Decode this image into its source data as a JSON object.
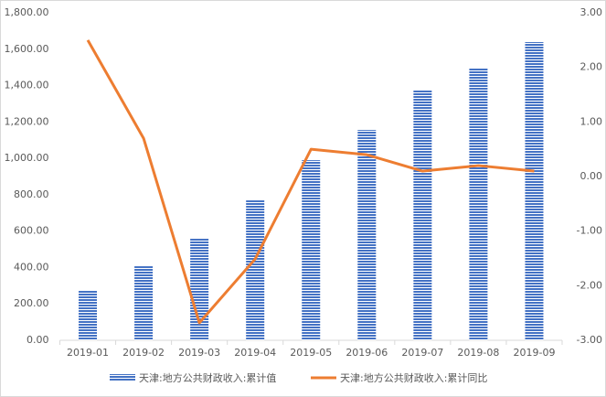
{
  "chart_data": {
    "type": "bar-line",
    "categories": [
      "2019-01",
      "2019-02",
      "2019-03",
      "2019-04",
      "2019-05",
      "2019-06",
      "2019-07",
      "2019-08",
      "2019-09"
    ],
    "series": [
      {
        "name": "天津:地方公共财政收入:累计值",
        "type": "bar",
        "color": "#4472c4",
        "values": [
          272,
          407,
          558,
          769,
          990,
          1156,
          1373,
          1498,
          1639
        ]
      },
      {
        "name": "天津:地方公共财政收入:累计同比",
        "type": "line",
        "axis": "y2",
        "color": "#ed7d31",
        "values": [
          2.5,
          0.7,
          -2.68,
          -1.51,
          0.5,
          0.4,
          0.1,
          0.2,
          0.1
        ]
      }
    ],
    "ylim": [
      0,
      1800
    ],
    "yticks": [
      {
        "value": 0,
        "label": "0.00"
      },
      {
        "value": 200,
        "label": "200.00"
      },
      {
        "value": 400,
        "label": "400.00"
      },
      {
        "value": 600,
        "label": "600.00"
      },
      {
        "value": 800,
        "label": "800.00"
      },
      {
        "value": 1000,
        "label": "1,000.00"
      },
      {
        "value": 1200,
        "label": "1,200.00"
      },
      {
        "value": 1400,
        "label": "1,400.00"
      },
      {
        "value": 1600,
        "label": "1,600.00"
      },
      {
        "value": 1800,
        "label": "1,800.00"
      }
    ],
    "y2lim": [
      -3,
      3
    ],
    "y2ticks": [
      {
        "value": -3,
        "label": "-3.00"
      },
      {
        "value": -2,
        "label": "-2.00"
      },
      {
        "value": -1,
        "label": "-1.00"
      },
      {
        "value": 0,
        "label": "0.00"
      },
      {
        "value": 1,
        "label": "1.00"
      },
      {
        "value": 2,
        "label": "2.00"
      },
      {
        "value": 3,
        "label": "3.00"
      }
    ],
    "grid": false,
    "legend": "bottom"
  }
}
